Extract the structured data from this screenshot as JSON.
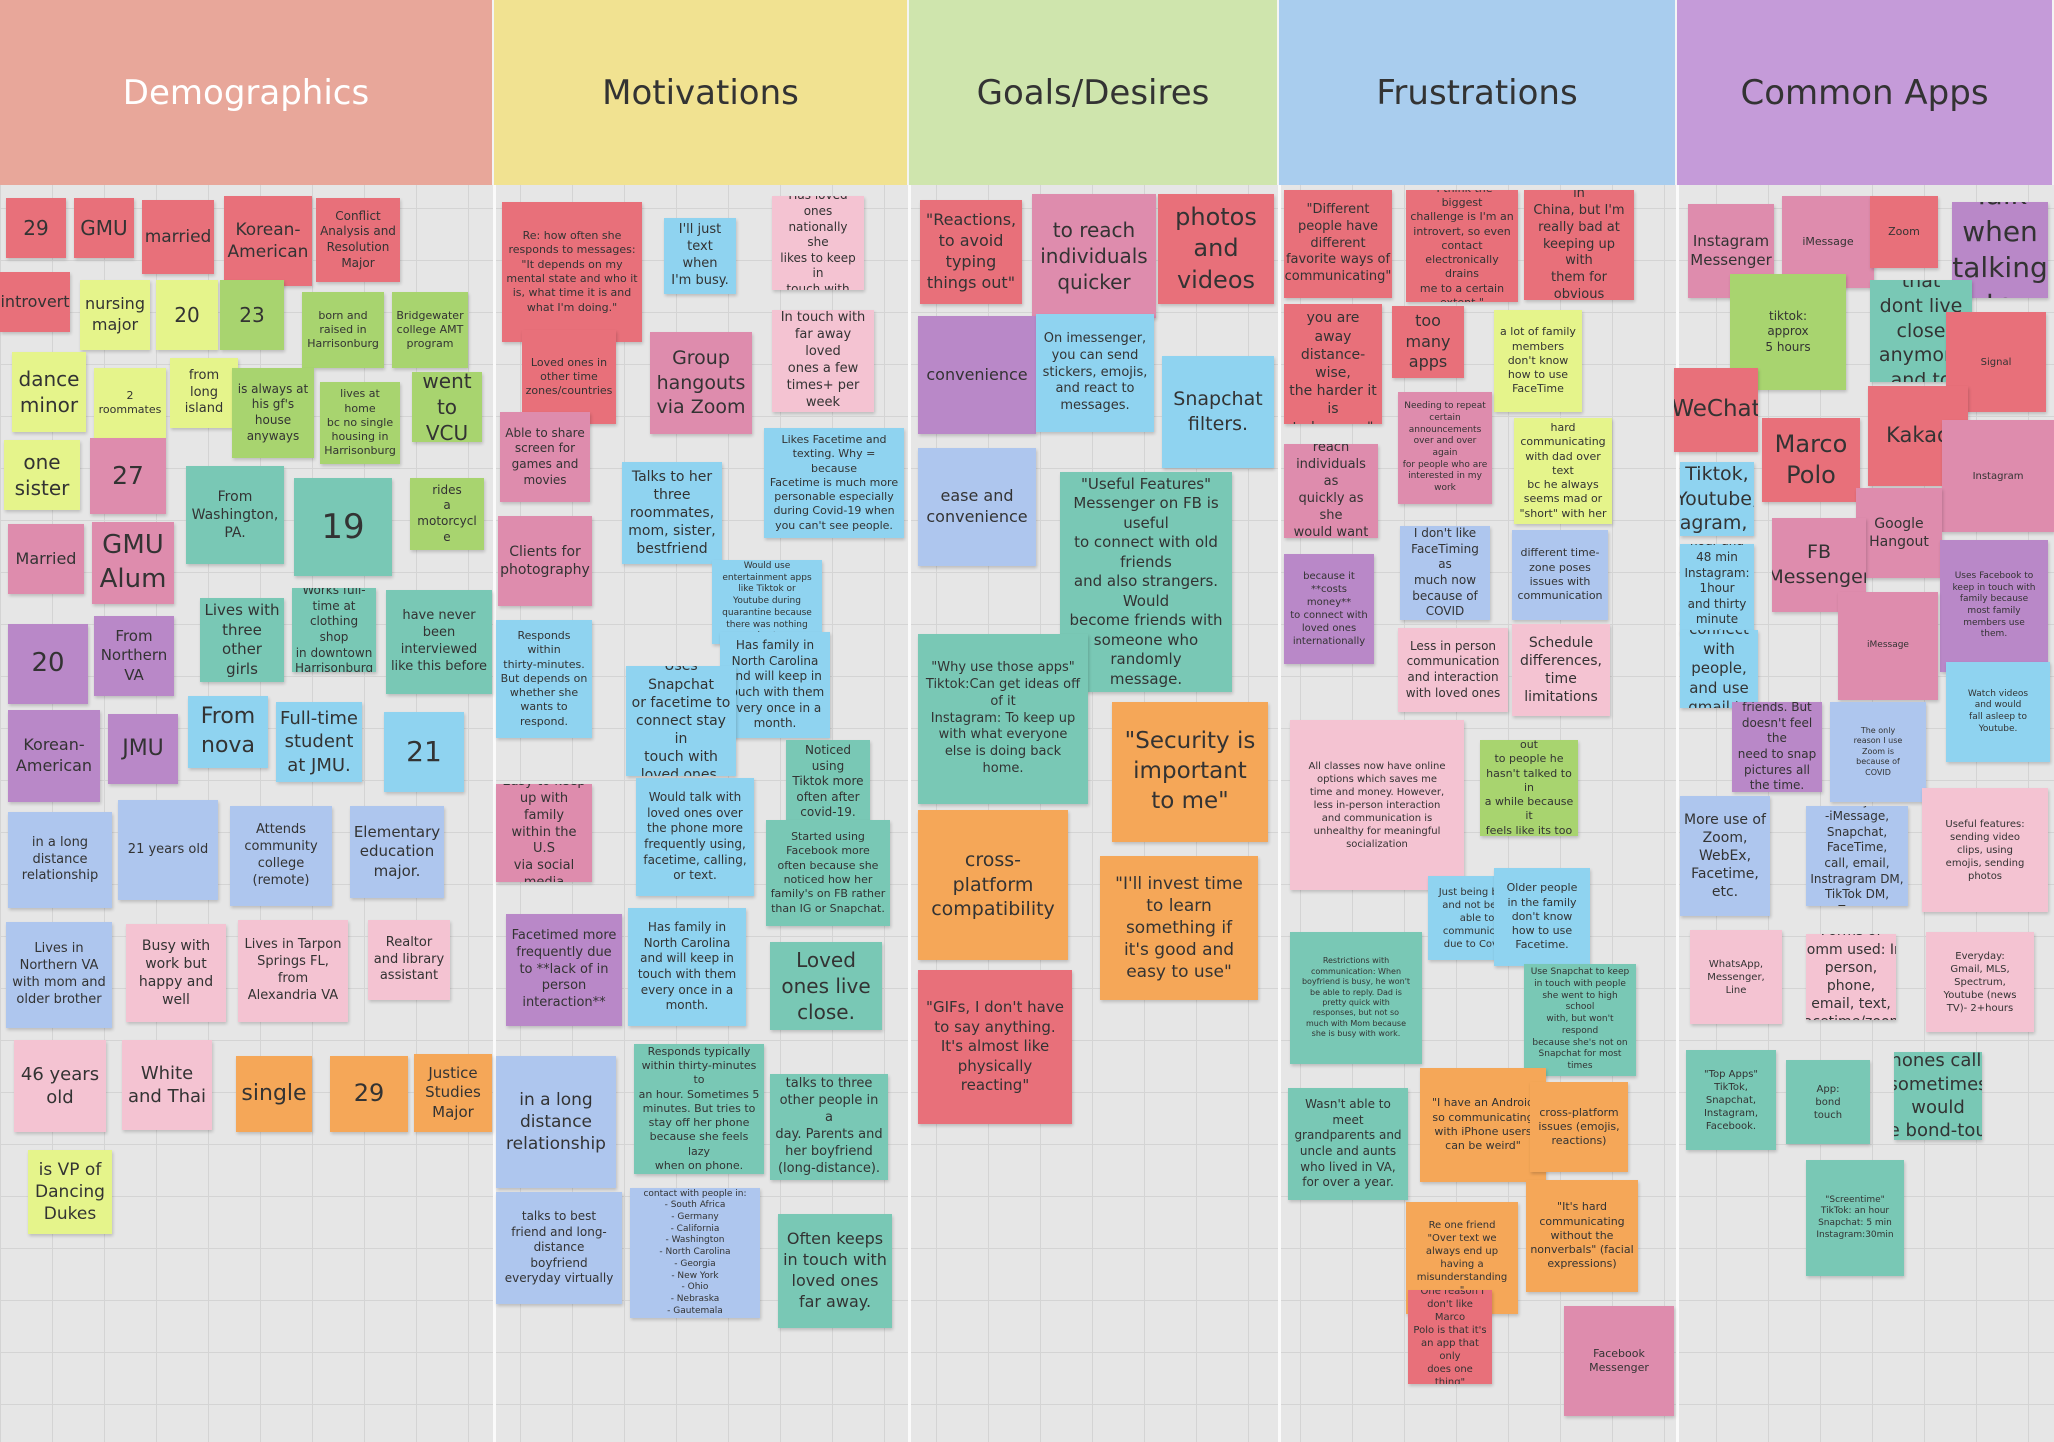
{
  "colors": {
    "red": "#e8707a",
    "pink": "#f4c3d2",
    "dpink": "#de8cad",
    "lime": "#e5f48b",
    "green": "#a8d46f",
    "teal": "#79c8b5",
    "purple": "#b988c8",
    "blue": "#aec6ee",
    "cyan": "#8fd3f0",
    "orange": "#f5a758"
  },
  "columns": [
    {
      "label": "Demographics",
      "color": "#e8a79a",
      "text": "#ffffff"
    },
    {
      "label": "Motivations",
      "color": "#f1e291",
      "text": "#333333"
    },
    {
      "label": "Goals/Desires",
      "color": "#cfe5ad",
      "text": "#333333"
    },
    {
      "label": "Frustrations",
      "color": "#a9cdee",
      "text": "#333333"
    },
    {
      "label": "Common Apps",
      "color": "#c59bd9",
      "text": "#333333"
    }
  ],
  "notes": [
    {
      "text": "29",
      "color": "red"
    },
    {
      "text": "GMU",
      "color": "red"
    },
    {
      "text": "married",
      "color": "red"
    },
    {
      "text": "Korean-\nAmerican",
      "color": "red"
    },
    {
      "text": "Conflict\nAnalysis and\nResolution\nMajor",
      "color": "red"
    },
    {
      "text": "introvert",
      "color": "red"
    },
    {
      "text": "nursing\nmajor",
      "color": "lime"
    },
    {
      "text": "20",
      "color": "lime"
    },
    {
      "text": "23",
      "color": "green"
    },
    {
      "text": "born and\nraised in\nHarrisonburg",
      "color": "green"
    },
    {
      "text": "Bridgewater\ncollege AMT\nprogram",
      "color": "green"
    },
    {
      "text": "dance\nminor",
      "color": "lime"
    },
    {
      "text": "2\nroommates",
      "color": "lime"
    },
    {
      "text": "from\nlong\nisland",
      "color": "lime"
    },
    {
      "text": "is always at\nhis gf's\nhouse\nanyways",
      "color": "green"
    },
    {
      "text": "lives at home\nbc no single\nhousing in\nHarrisonburg",
      "color": "green"
    },
    {
      "text": "went\nto VCU",
      "color": "green"
    },
    {
      "text": "one\nsister",
      "color": "lime"
    },
    {
      "text": "27",
      "color": "dpink"
    },
    {
      "text": "From\nWashington,\nPA.",
      "color": "teal"
    },
    {
      "text": "19",
      "color": "teal"
    },
    {
      "text": "rides\na motorcycl\ne",
      "color": "green"
    },
    {
      "text": "Married",
      "color": "dpink"
    },
    {
      "text": "GMU\nAlum",
      "color": "dpink"
    },
    {
      "text": "Lives with\nthree\nother girls",
      "color": "teal"
    },
    {
      "text": "Works full-\ntime at\nclothing shop\nin downtown\nHarrisonburg",
      "color": "teal"
    },
    {
      "text": "have never\nbeen\ninterviewed\nlike this before",
      "color": "teal"
    },
    {
      "text": "20",
      "color": "purple"
    },
    {
      "text": "From\nNorthern\nVA",
      "color": "purple"
    },
    {
      "text": "From\nnova",
      "color": "cyan"
    },
    {
      "text": "Full-time\nstudent\nat JMU.",
      "color": "cyan"
    },
    {
      "text": "21",
      "color": "cyan"
    },
    {
      "text": "Korean-\nAmerican",
      "color": "purple"
    },
    {
      "text": "JMU",
      "color": "purple"
    },
    {
      "text": "in a long\ndistance\nrelationship",
      "color": "blue"
    },
    {
      "text": "21 years old",
      "color": "blue"
    },
    {
      "text": "Attends\ncommunity\ncollege\n(remote)",
      "color": "blue"
    },
    {
      "text": "Elementary\neducation\nmajor.",
      "color": "blue"
    },
    {
      "text": "Lives in\nNorthern VA\nwith mom and\nolder brother",
      "color": "blue"
    },
    {
      "text": "Busy with\nwork but\nhappy and\nwell",
      "color": "pink"
    },
    {
      "text": "Lives in Tarpon\nSprings FL,\nfrom\nAlexandria VA",
      "color": "pink"
    },
    {
      "text": "Realtor\nand library\nassistant",
      "color": "pink"
    },
    {
      "text": "46 years\nold",
      "color": "pink"
    },
    {
      "text": "White\nand Thai",
      "color": "pink"
    },
    {
      "text": "single",
      "color": "orange"
    },
    {
      "text": "29",
      "color": "orange"
    },
    {
      "text": "Justice\nStudies\nMajor",
      "color": "orange"
    },
    {
      "text": "is VP of\nDancing\nDukes",
      "color": "lime"
    },
    {
      "text": "Re: how often she\nresponds to messages:\n\"It depends on my\nmental state and who it\nis, what time it is and\nwhat I'm doing.\"",
      "color": "red"
    },
    {
      "text": "I'll just\ntext when\nI'm busy.",
      "color": "cyan"
    },
    {
      "text": "Has loved\nones\nnationally she\nlikes to keep in\ntouch with",
      "color": "pink"
    },
    {
      "text": "Loved ones in\nother time\nzones/countries",
      "color": "red"
    },
    {
      "text": "Group\nhangouts\nvia Zoom",
      "color": "dpink"
    },
    {
      "text": "In touch with\nfar away loved\nones a few\ntimes+ per\nweek",
      "color": "pink"
    },
    {
      "text": "Able to share\nscreen for\ngames and\nmovies",
      "color": "dpink"
    },
    {
      "text": "Talks to her\nthree\nroommates,\nmom, sister,\nbestfriend",
      "color": "cyan"
    },
    {
      "text": "Likes Facetime and\ntexting. Why = because\nFacetime is much more\npersonable especially\nduring Covid-19 when\nyou can't see people.",
      "color": "cyan"
    },
    {
      "text": "Clients for\nphotography",
      "color": "dpink"
    },
    {
      "text": "Would use\nentertainment apps\nlike Tiktok or\nYoutube during\nquarantine because\nthere was nothing\nelse to",
      "color": "cyan"
    },
    {
      "text": "Responds within\nthirty-minutes.\nBut depends on\nwhether she\nwants to respond.",
      "color": "cyan"
    },
    {
      "text": "Has family in\nNorth Carolina\nand will keep in\ntouch with them\nevery once in a\nmonth.",
      "color": "cyan"
    },
    {
      "text": "Uses Snapchat\nor facetime to\nconnect stay in\ntouch with\nloved ones.",
      "color": "cyan"
    },
    {
      "text": "Noticed using\nTiktok more\noften after\ncovid-19.",
      "color": "teal"
    },
    {
      "text": "Easy to keep\nup with family\nwithin the U.S\nvia social\nmedia",
      "color": "dpink"
    },
    {
      "text": "Would talk with\nloved ones over\nthe phone more\nfrequently using,\nfacetime, calling,\nor text.",
      "color": "cyan"
    },
    {
      "text": "Started using\nFacebook more\noften because she\nnoticed how her\nfamily's on FB rather\nthan IG or Snapchat.",
      "color": "teal"
    },
    {
      "text": "Facetimed more\nfrequently due\nto **lack of in\nperson\ninteraction**",
      "color": "purple"
    },
    {
      "text": "Has family in\nNorth Carolina\nand will keep in\ntouch with them\nevery once in a\nmonth.",
      "color": "cyan"
    },
    {
      "text": "Loved\nones live\nclose.",
      "color": "teal"
    },
    {
      "text": "in a long\ndistance\nrelationship",
      "color": "blue"
    },
    {
      "text": "Responds typically\nwithin thirty-minutes to\nan hour. Sometimes 5\nminutes. But tries to\nstay off her phone\nbecause she feels lazy\nwhen on phone.",
      "color": "teal"
    },
    {
      "text": "talks to three\nother people in a\nday. Parents and\nher boyfriend\n(long-distance).",
      "color": "teal"
    },
    {
      "text": "talks to best\nfriend and long-\ndistance\nboyfriend\neveryday virtually",
      "color": "blue"
    },
    {
      "text": "contact with people in:\n- South Africa\n- Germany\n- California\n- Washington\n- North Carolina\n- Georgia\n- New York\n- Ohio\n- Nebraska\n- Gautemala",
      "color": "blue"
    },
    {
      "text": "Often keeps\nin touch with\nloved ones\nfar away.",
      "color": "teal"
    },
    {
      "text": "\"Reactions,\nto avoid\ntyping\nthings out\"",
      "color": "red"
    },
    {
      "text": "to reach\nindividuals\nquicker",
      "color": "dpink"
    },
    {
      "text": "photos\nand\nvideos",
      "color": "red"
    },
    {
      "text": "convenience",
      "color": "purple"
    },
    {
      "text": "On imessenger,\nyou can send\nstickers, emojis,\nand react to\nmessages.",
      "color": "cyan"
    },
    {
      "text": "Snapchat\nfilters.",
      "color": "cyan"
    },
    {
      "text": "ease and\nconvenience",
      "color": "blue"
    },
    {
      "text": "\"Useful Features\"\nMessenger on FB is useful\nto connect with old friends\nand also strangers. Would\nbecome friends with\nsomeone who randomly\nmessage.",
      "color": "teal"
    },
    {
      "text": "\"Why use those apps\"\nTiktok:Can get ideas off\nof it\nInstagram: To keep up\nwith what everyone\nelse is doing back\nhome.",
      "color": "teal"
    },
    {
      "text": "\"Security is\nimportant\nto me\"",
      "color": "orange"
    },
    {
      "text": "cross-\nplatform\ncompatibility",
      "color": "orange"
    },
    {
      "text": "\"I'll invest time\nto learn\nsomething if\nit's good and\neasy to use\"",
      "color": "orange"
    },
    {
      "text": "\"GIFs, I don't have\nto say anything.\nIt's almost like\nphysically\nreacting\"",
      "color": "red"
    },
    {
      "text": "\"Different\npeople have\ndifferent\nfavorite ways of\ncommunicating\"",
      "color": "red"
    },
    {
      "text": "\"I think the biggest\nchallenge is I'm an\nintrovert, so even\ncontact\nelectronically drains\nme to a certain\nextent.\"",
      "color": "red"
    },
    {
      "text": "\"I have friends in\nChina, but I'm\nreally bad at\nkeeping up with\nthem for obvious\nreasons.\"",
      "color": "red"
    },
    {
      "text": "\"The further\nyou are away\ndistance-wise,\nthe harder it is\nto keep up\"",
      "color": "red"
    },
    {
      "text": "too\nmany\napps",
      "color": "red"
    },
    {
      "text": "a lot of family\nmembers\ndon't know\nhow to use\nFaceTime",
      "color": "lime"
    },
    {
      "text": "Needing to repeat\ncertain\nannouncements\nover and over again\nfor people who are\ninterested in my\nwork",
      "color": "dpink"
    },
    {
      "text": "hard\ncommunicating\nwith dad over text\nbc he always\nseems mad or\n\"short\" with her",
      "color": "lime"
    },
    {
      "text": "Does not reach\nindividuals as\nquickly as she\nwould want it to",
      "color": "dpink"
    },
    {
      "text": "I don't like\nFaceTiming as\nmuch now\nbecause of\nCOVID",
      "color": "blue"
    },
    {
      "text": "different time-\nzone poses\nissues with\ncommunication",
      "color": "blue"
    },
    {
      "text": "because it\n**costs money**\nto connect with\nloved ones\ninternationally",
      "color": "purple"
    },
    {
      "text": "Less in person\ncommunication\nand interaction\nwith loved ones",
      "color": "pink"
    },
    {
      "text": "Schedule\ndifferences,\ntime\nlimitations",
      "color": "pink"
    },
    {
      "text": "All classes now have online\noptions which saves me\ntime and money.  However,\nless in-person interaction\nand communication is\nunhealthy for meaningful\nsocialization",
      "color": "pink"
    },
    {
      "text": "hard to reach out\nto people he\nhasn't talked to in\na while because it\nfeels like its too\nawkward",
      "color": "green"
    },
    {
      "text": "Just being busy\nand not being\nable to\ncommunicate\ndue to Covid.",
      "color": "cyan"
    },
    {
      "text": "Older people\nin the family\ndon't know\nhow to use\nFacetime.",
      "color": "cyan"
    },
    {
      "text": "Restrictions with\ncommunication: When\nboyfriend is busy, he won't\nbe able to reply. Dad is\npretty quick with\nresponses, but not so\nmuch with Mom because\nshe is busy with work.",
      "color": "teal"
    },
    {
      "text": "Use Snapchat to keep\nin touch with people\nshe went to high school\nwith, but won't respond\nbecause she's not on\nSnapchat for most\ntimes",
      "color": "teal"
    },
    {
      "text": "Wasn't able to\nmeet\ngrandparents and\nuncle and aunts\nwho lived in VA,\nfor over a year.",
      "color": "teal"
    },
    {
      "text": "\"I have an Android\nso communicating\nwith iPhone users\ncan be weird\"",
      "color": "orange"
    },
    {
      "text": "Re one friend\n\"Over text we\nalways end up\nhaving a\nmisunderstanding\n\"",
      "color": "orange"
    },
    {
      "text": "cross-platform\nissues (emojis,\nreactions)",
      "color": "orange"
    },
    {
      "text": "\"It's hard\ncommunicating\nwithout the\nnonverbals\" (facial\nexpressions)",
      "color": "orange"
    },
    {
      "text": "\"One reason I\ndon't like Marco\nPolo is that it's\nan app that only\ndoes one thing\"",
      "color": "red"
    },
    {
      "text": "Facebook\nMessenger",
      "color": "dpink"
    },
    {
      "text": "Instagram\nMessenger",
      "color": "dpink"
    },
    {
      "text": "iMessage",
      "color": "dpink"
    },
    {
      "text": "Zoom",
      "color": "red"
    },
    {
      "text": "Uses Kakao\nTalk when\ntalking to\nfamily\noverseas",
      "color": "purple"
    },
    {
      "text": "tiktok:\napprox\n5 hours",
      "color": "green"
    },
    {
      "text": "discord: talking\nto friends that\ndont live close\nanymore and to\ngame with them",
      "color": "teal"
    },
    {
      "text": "Signal",
      "color": "red"
    },
    {
      "text": "WeChat",
      "color": "red"
    },
    {
      "text": "Kakao",
      "color": "red"
    },
    {
      "text": "Marco\nPolo",
      "color": "red"
    },
    {
      "text": "Uses snapchat,\nTiktok, Youtube,\nInstagram, and\nFacebook,Gmail",
      "color": "cyan"
    },
    {
      "text": "Instagram",
      "color": "dpink"
    },
    {
      "text": "Google\nHangout",
      "color": "dpink"
    },
    {
      "text": "FB\nMessenger",
      "color": "dpink"
    },
    {
      "text": "\"Screen time\"\nTiktok: 1 hour and\n48 min\nInstagram: 1hour\nand thirty minute\nYoutube: 4 hours\nFacebook: 30 min",
      "color": "cyan"
    },
    {
      "text": "Uses Facebook to\nkeep in touch with\nfamily because\nmost family\nmembers use\nthem.",
      "color": "purple"
    },
    {
      "text": "iMessage",
      "color": "dpink"
    },
    {
      "text": "Uses Instagram\nto connect with\npeople, and use\ngmail to check\nany emails",
      "color": "cyan"
    },
    {
      "text": "Watch videos\nand would\nfall asleep to\nYoutube.",
      "color": "cyan"
    },
    {
      "text": "Uses Snapchat to\ntalk with friends. But\ndoesn't feel the\nneed to snap\npictures all the time.\nIt's easier to text for\nme.",
      "color": "purple"
    },
    {
      "text": "The only\nreason I use\nZoom is\nbecause of\nCOVID",
      "color": "blue"
    },
    {
      "text": "More use of\nZoom,\nWebEx,\nFacetime, etc.",
      "color": "blue"
    },
    {
      "text": "apps used daily:\n-iMessage,\nSnapchat, FaceTime,\ncall, email,\nInstragram DM,\nTikTok DM, Zoom,\nDiscord",
      "color": "blue"
    },
    {
      "text": "Useful features:\nsending video\nclips, using\nemojis, sending\nphotos",
      "color": "pink"
    },
    {
      "text": "WhatsApp,\nMessenger,\nLine",
      "color": "pink"
    },
    {
      "text": "Forms of\ncomm used: In\nperson, phone,\nemail, text,\nfacetime/zoom",
      "color": "pink"
    },
    {
      "text": "Everyday:\nGmail, MLS,\nSpectrum,\nYoutube (news\nTV)- 2+hours",
      "color": "pink"
    },
    {
      "text": "\"Top Apps\"\nTikTok,\nSnapchat,\nInstagram,\nFacebook.",
      "color": "teal"
    },
    {
      "text": "App:\nbond\ntouch",
      "color": "teal"
    },
    {
      "text": "Ideal mode of\ncommunication:\nPhones calls,\nsometimes would\nuse bond-touch\nbracelet with\nboyfriend.",
      "color": "teal"
    },
    {
      "text": "\"Screentime\"\nTikTok: an hour\nSnapchat: 5 min\nInstagram:30min",
      "color": "teal"
    }
  ]
}
